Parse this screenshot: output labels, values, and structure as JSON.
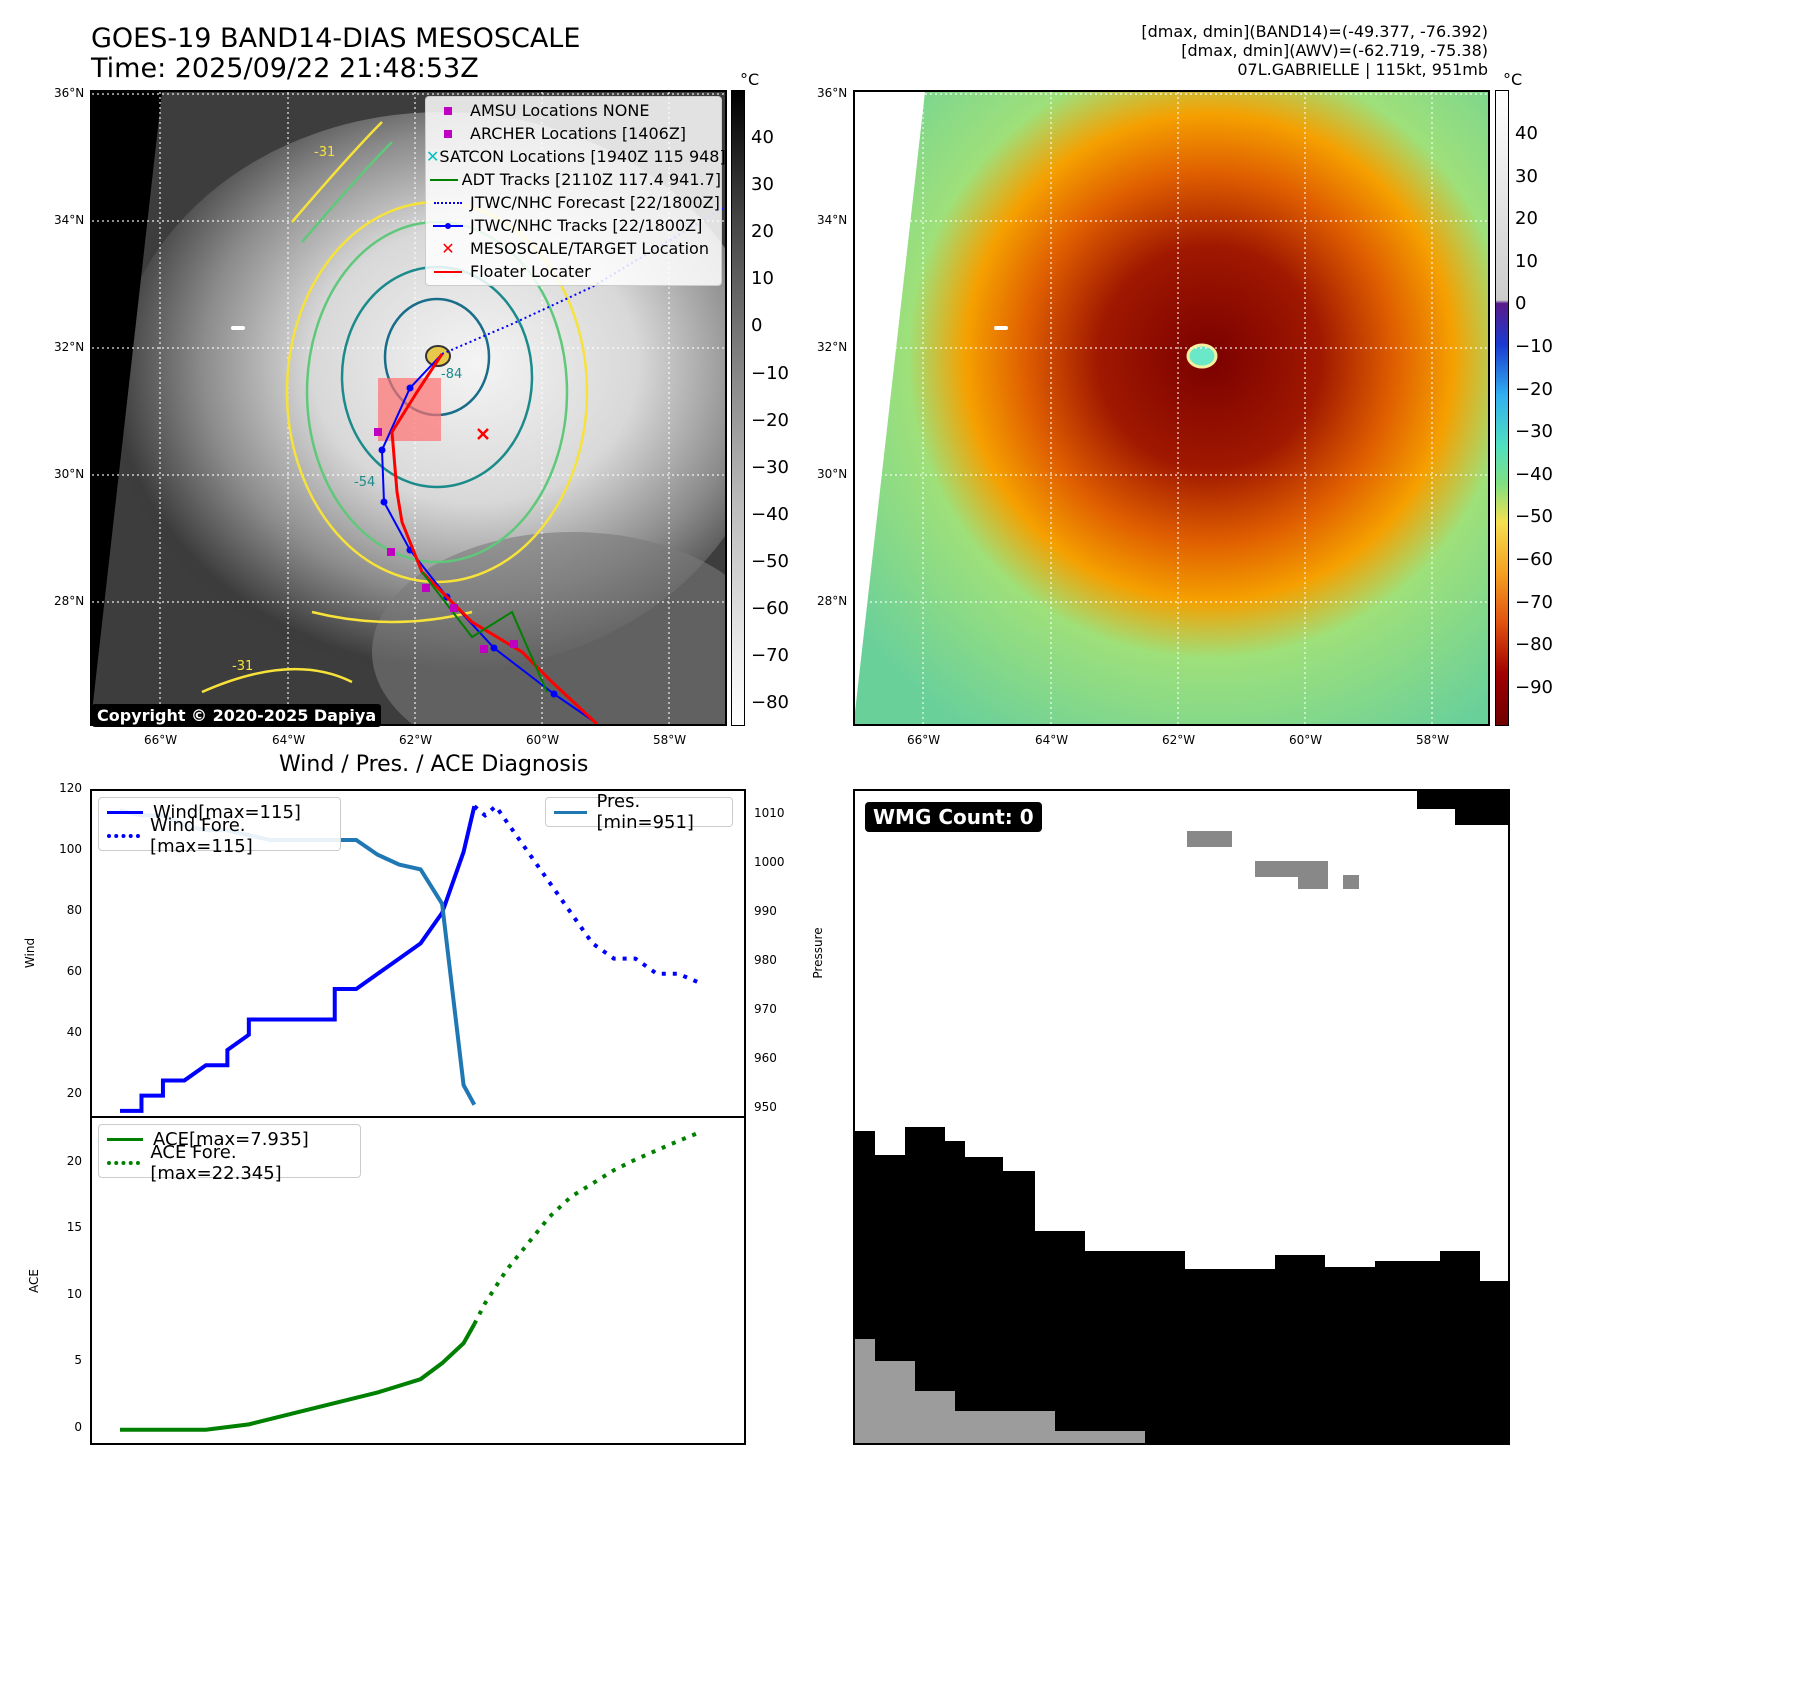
{
  "header": {
    "title_line1": "GOES-19 BAND14-DIAS MESOSCALE",
    "title_line2": "Time: 2025/09/22 21:48:53Z",
    "info_line1": "[dmax, dmin](BAND14)=(-49.377, -76.392)",
    "info_line2": "[dmax, dmin](AWV)=(-62.719, -75.38)",
    "info_line3": "07L.GABRIELLE | 115kt, 951mb"
  },
  "map": {
    "lat_labels": [
      "36°N",
      "34°N",
      "32°N",
      "30°N",
      "28°N"
    ],
    "lon_labels": [
      "66°W",
      "64°W",
      "62°W",
      "60°W",
      "58°W"
    ],
    "copyright": "Copyright © 2020-2025 Dapiya",
    "contour_labels": [
      "-31",
      "-54",
      "-84",
      "-31"
    ],
    "legend": [
      {
        "label": "AMSU Locations NONE",
        "symbol": "square",
        "color": "#c000c0"
      },
      {
        "label": "ARCHER Locations [1406Z]",
        "symbol": "square",
        "color": "#c000c0"
      },
      {
        "label": "SATCON Locations [1940Z 115 948]",
        "symbol": "x",
        "color": "#00c0c0"
      },
      {
        "label": "ADT Tracks [2110Z 117.4 941.7]",
        "symbol": "line",
        "color": "#008000"
      },
      {
        "label": "JTWC/NHC Forecast [22/1800Z]",
        "symbol": "dotted",
        "color": "#0000ff"
      },
      {
        "label": "JTWC/NHC Tracks [22/1800Z]",
        "symbol": "linedot",
        "color": "#0000ff"
      },
      {
        "label": "MESOSCALE/TARGET Location",
        "symbol": "x",
        "color": "#ff0000"
      },
      {
        "label": "Floater Locater",
        "symbol": "line",
        "color": "#ff0000"
      }
    ]
  },
  "colorbar_left": {
    "unit": "°C",
    "ticks": [
      "40",
      "30",
      "20",
      "10",
      "0",
      "−10",
      "−20",
      "−30",
      "−40",
      "−50",
      "−60",
      "−70",
      "−80"
    ]
  },
  "colorbar_right": {
    "unit": "°C",
    "ticks": [
      "40",
      "30",
      "20",
      "10",
      "0",
      "−10",
      "−20",
      "−30",
      "−40",
      "−50",
      "−60",
      "−70",
      "−80",
      "−90"
    ]
  },
  "chart_data": [
    {
      "type": "line",
      "title": "Wind / Pres. / ACE Diagnosis",
      "ylabel": "Wind",
      "y2label": "Pressure",
      "ylim": [
        13,
        120
      ],
      "y2lim": [
        948.5,
        1015
      ],
      "yticks": [
        "120",
        "100",
        "80",
        "60",
        "40",
        "20"
      ],
      "y2ticks": [
        "1010",
        "1000",
        "990",
        "980",
        "970",
        "960",
        "950"
      ],
      "series": [
        {
          "name": "Wind[max=115]",
          "color": "#0000ff",
          "style": "solid",
          "x": [
            0,
            1,
            1,
            2,
            2,
            3,
            3,
            4,
            4,
            5,
            5,
            6,
            6,
            7,
            7,
            8,
            9,
            10,
            10,
            11,
            12,
            13,
            14,
            15,
            16,
            16.5
          ],
          "values": [
            15,
            15,
            20,
            20,
            25,
            25,
            25,
            30,
            30,
            30,
            35,
            40,
            45,
            45,
            45,
            45,
            45,
            45,
            55,
            55,
            60,
            65,
            70,
            80,
            100,
            115
          ]
        },
        {
          "name": "Wind Fore.[max=115]",
          "color": "#0000ff",
          "style": "dotted",
          "x": [
            16.5,
            17,
            17.5,
            18,
            19,
            20,
            21,
            22,
            23,
            24,
            25,
            26,
            27
          ],
          "values": [
            115,
            112,
            115,
            110,
            100,
            90,
            80,
            70,
            65,
            65,
            60,
            60,
            57
          ]
        },
        {
          "name": "Pres.[min=951]",
          "color": "#1f77b4",
          "style": "solid",
          "x": [
            0,
            1,
            2,
            3,
            4,
            5,
            6,
            7,
            8,
            9,
            10,
            11,
            12,
            13,
            14,
            15,
            16,
            16.5
          ],
          "values": [
            1011,
            1010,
            1010,
            1008,
            1007,
            1007,
            1006,
            1005,
            1005,
            1005,
            1005,
            1005,
            1002,
            1000,
            999,
            992,
            955,
            951
          ]
        }
      ]
    },
    {
      "type": "line",
      "ylabel": "ACE",
      "ylim": [
        -1,
        23.5
      ],
      "yticks": [
        "20",
        "15",
        "10",
        "5",
        "0"
      ],
      "series": [
        {
          "name": "ACE[max=7.935]",
          "color": "#008000",
          "style": "solid",
          "x": [
            0,
            2,
            4,
            6,
            8,
            10,
            12,
            14,
            15,
            16,
            16.5
          ],
          "values": [
            0,
            0,
            0,
            0.4,
            1.2,
            2,
            2.8,
            3.8,
            5,
            6.5,
            7.935
          ]
        },
        {
          "name": "ACE Fore.[max=22.345]",
          "color": "#008000",
          "style": "dotted",
          "x": [
            16.5,
            17,
            18,
            19,
            20,
            21,
            22,
            23,
            24,
            25,
            26,
            27
          ],
          "values": [
            7.935,
            9.5,
            12,
            14,
            16,
            17.5,
            18.5,
            19.5,
            20.3,
            21,
            21.7,
            22.345
          ]
        }
      ]
    }
  ],
  "wmg": {
    "label": "WMG Count: 0"
  }
}
